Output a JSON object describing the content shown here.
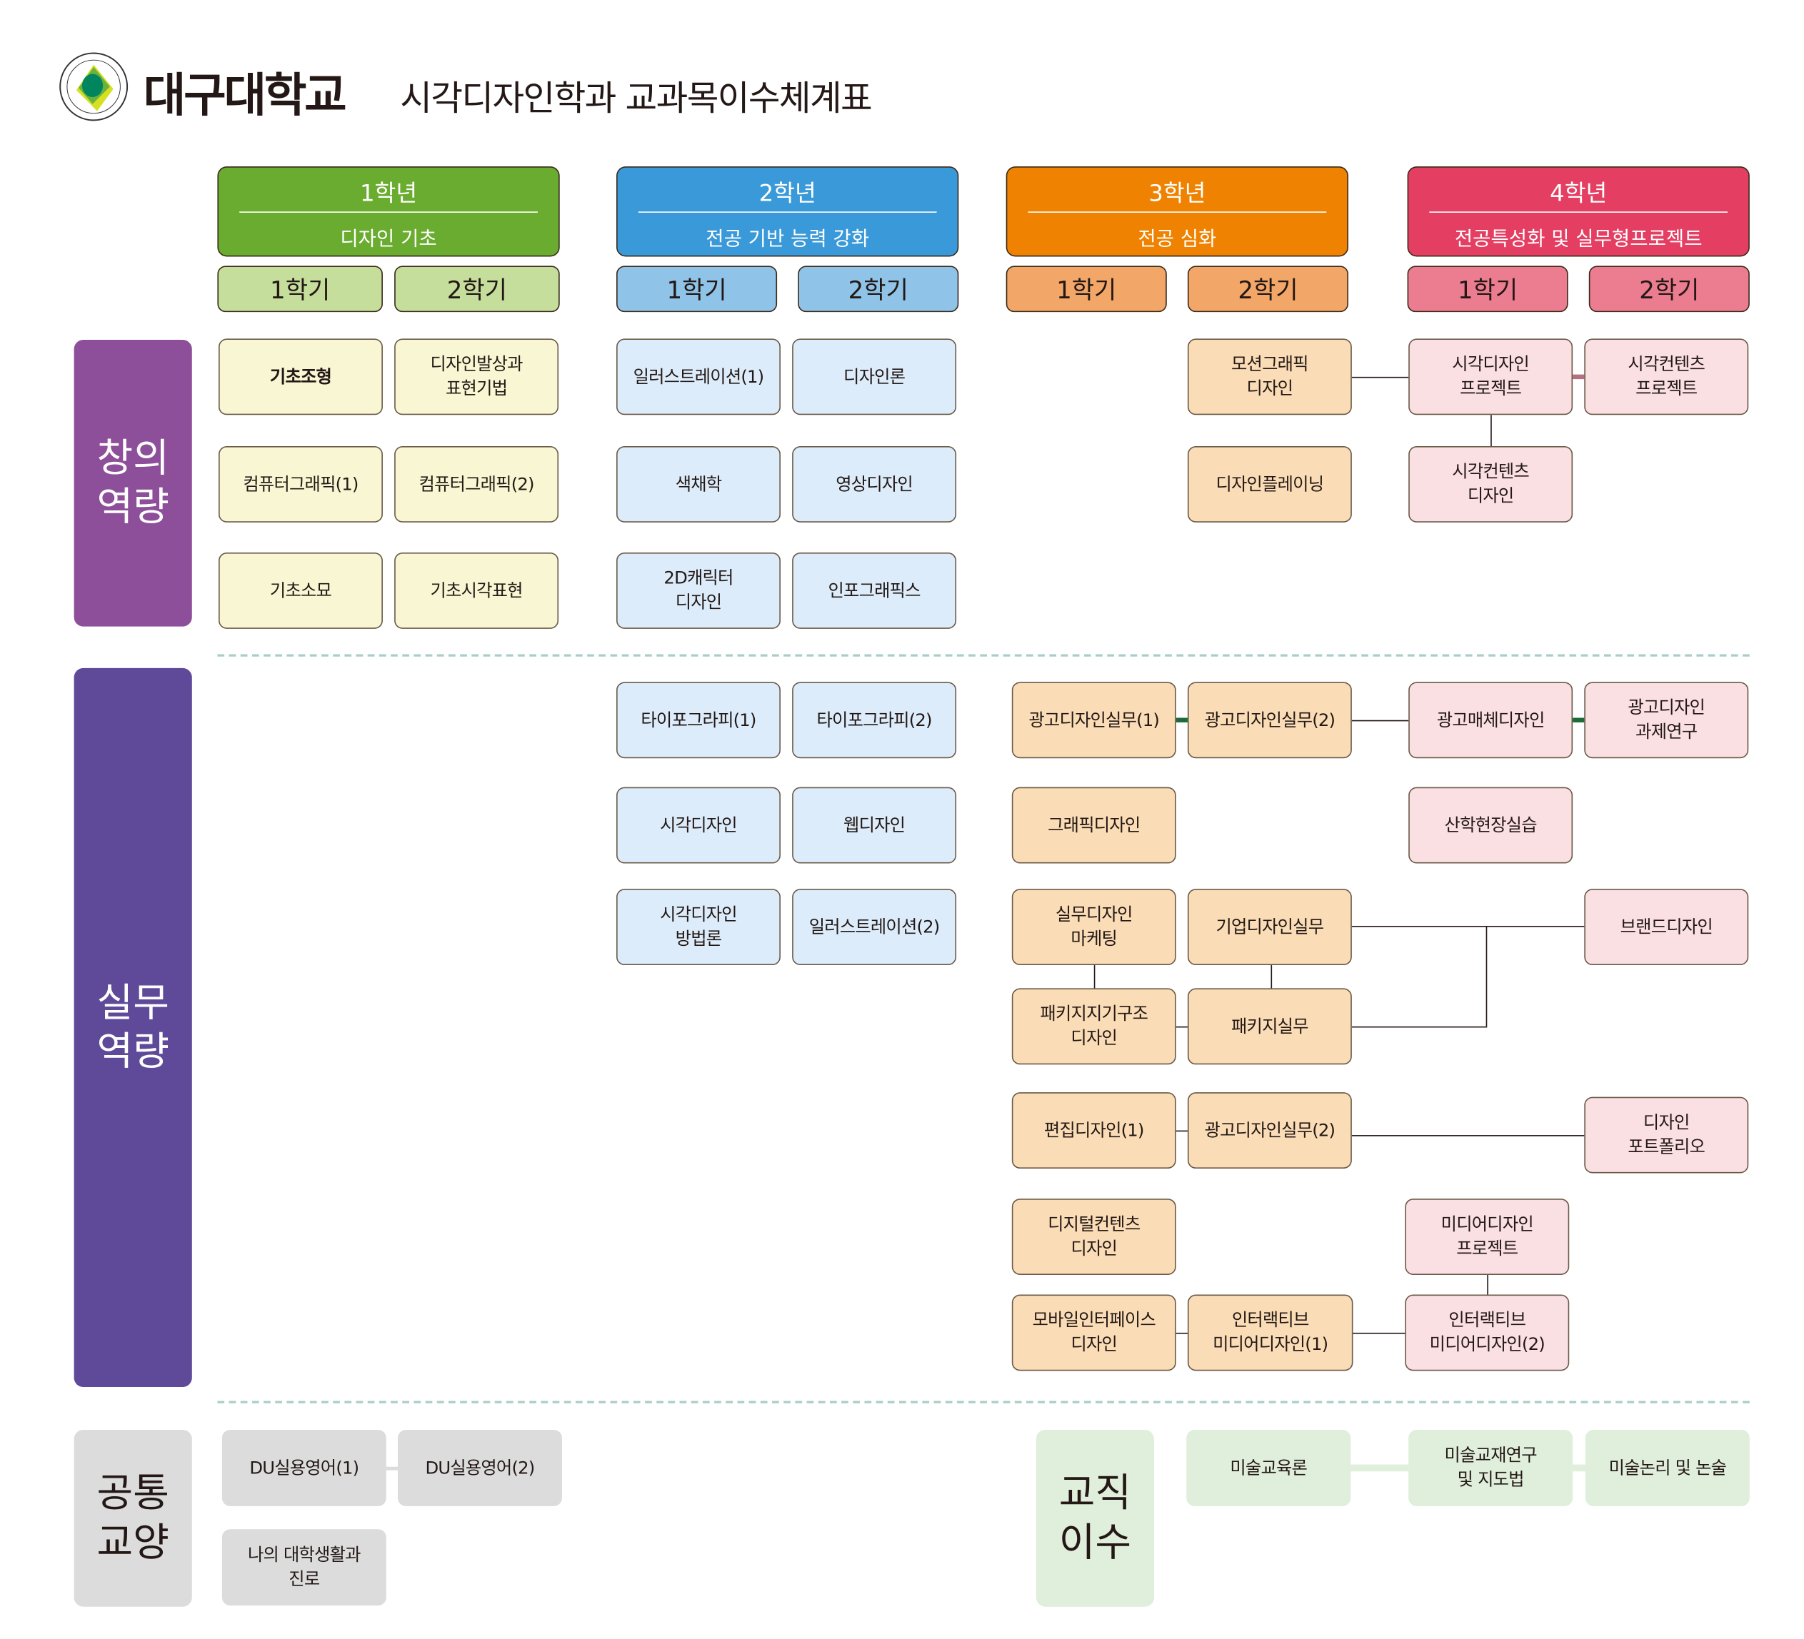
{
  "header": {
    "university": "대구대학교",
    "title": "시각디자인학과 교과목이수체계표",
    "logo_text": "대구대학교 DAEGU UNIVERSITY 1956"
  },
  "colors": {
    "year1": "#6aac2f",
    "year2": "#3a9ad9",
    "year3": "#ef8200",
    "year4": "#e43f62",
    "creative": "#8e4f9a",
    "practical": "#5e4a99",
    "general": "#dcdcdc",
    "teaching": "#e0eedc"
  },
  "years": [
    {
      "label": "1학년",
      "theme": "디자인 기초",
      "semesters": [
        "1학기",
        "2학기"
      ]
    },
    {
      "label": "2학년",
      "theme": "전공 기반 능력 강화",
      "semesters": [
        "1학기",
        "2학기"
      ]
    },
    {
      "label": "3학년",
      "theme": "전공 심화",
      "semesters": [
        "1학기",
        "2학기"
      ]
    },
    {
      "label": "4학년",
      "theme": "전공특성화 및 실무형프로젝트",
      "semesters": [
        "1학기",
        "2학기"
      ]
    }
  ],
  "competencies": {
    "creative": "창의\n역량",
    "practical": "실무\n역량",
    "general": "공통\n교양",
    "teaching": "교직\n이수"
  },
  "courses": {
    "creative": [
      "기초조형",
      "디자인발상과\n표현기법",
      "일러스트레이션(1)",
      "디자인론",
      "모션그래픽\n디자인",
      "시각디자인\n프로젝트",
      "시각컨텐츠\n프로젝트",
      "컴퓨터그래픽(1)",
      "컴퓨터그래픽(2)",
      "색채학",
      "영상디자인",
      "디자인플레이닝",
      "시각컨텐츠\n디자인",
      "기초소묘",
      "기초시각표현",
      "2D캐릭터\n디자인",
      "인포그래픽스"
    ],
    "practical": [
      "타이포그라피(1)",
      "타이포그라피(2)",
      "광고디자인실무(1)",
      "광고디자인실무(2)",
      "광고매체디자인",
      "광고디자인\n과제연구",
      "시각디자인",
      "웹디자인",
      "그래픽디자인",
      "산학현장실습",
      "시각디자인\n방법론",
      "일러스트레이션(2)",
      "실무디자인\n마케팅",
      "기업디자인실무",
      "브랜드디자인",
      "패키지지기구조\n디자인",
      "패키지실무",
      "편집디자인(1)",
      "광고디자인실무(2)",
      "디자인\n포트폴리오",
      "디지털컨텐츠\n디자인",
      "미디어디자인\n프로젝트",
      "모바일인터페이스\n디자인",
      "인터랙티브\n미디어디자인(1)",
      "인터랙티브\n미디어디자인(2)"
    ],
    "general": [
      "DU실용영어(1)",
      "DU실용영어(2)",
      "나의 대학생활과\n진로"
    ],
    "teaching": [
      "미술교육론",
      "미술교재연구\n및 지도법",
      "미술논리 및 논술"
    ]
  }
}
